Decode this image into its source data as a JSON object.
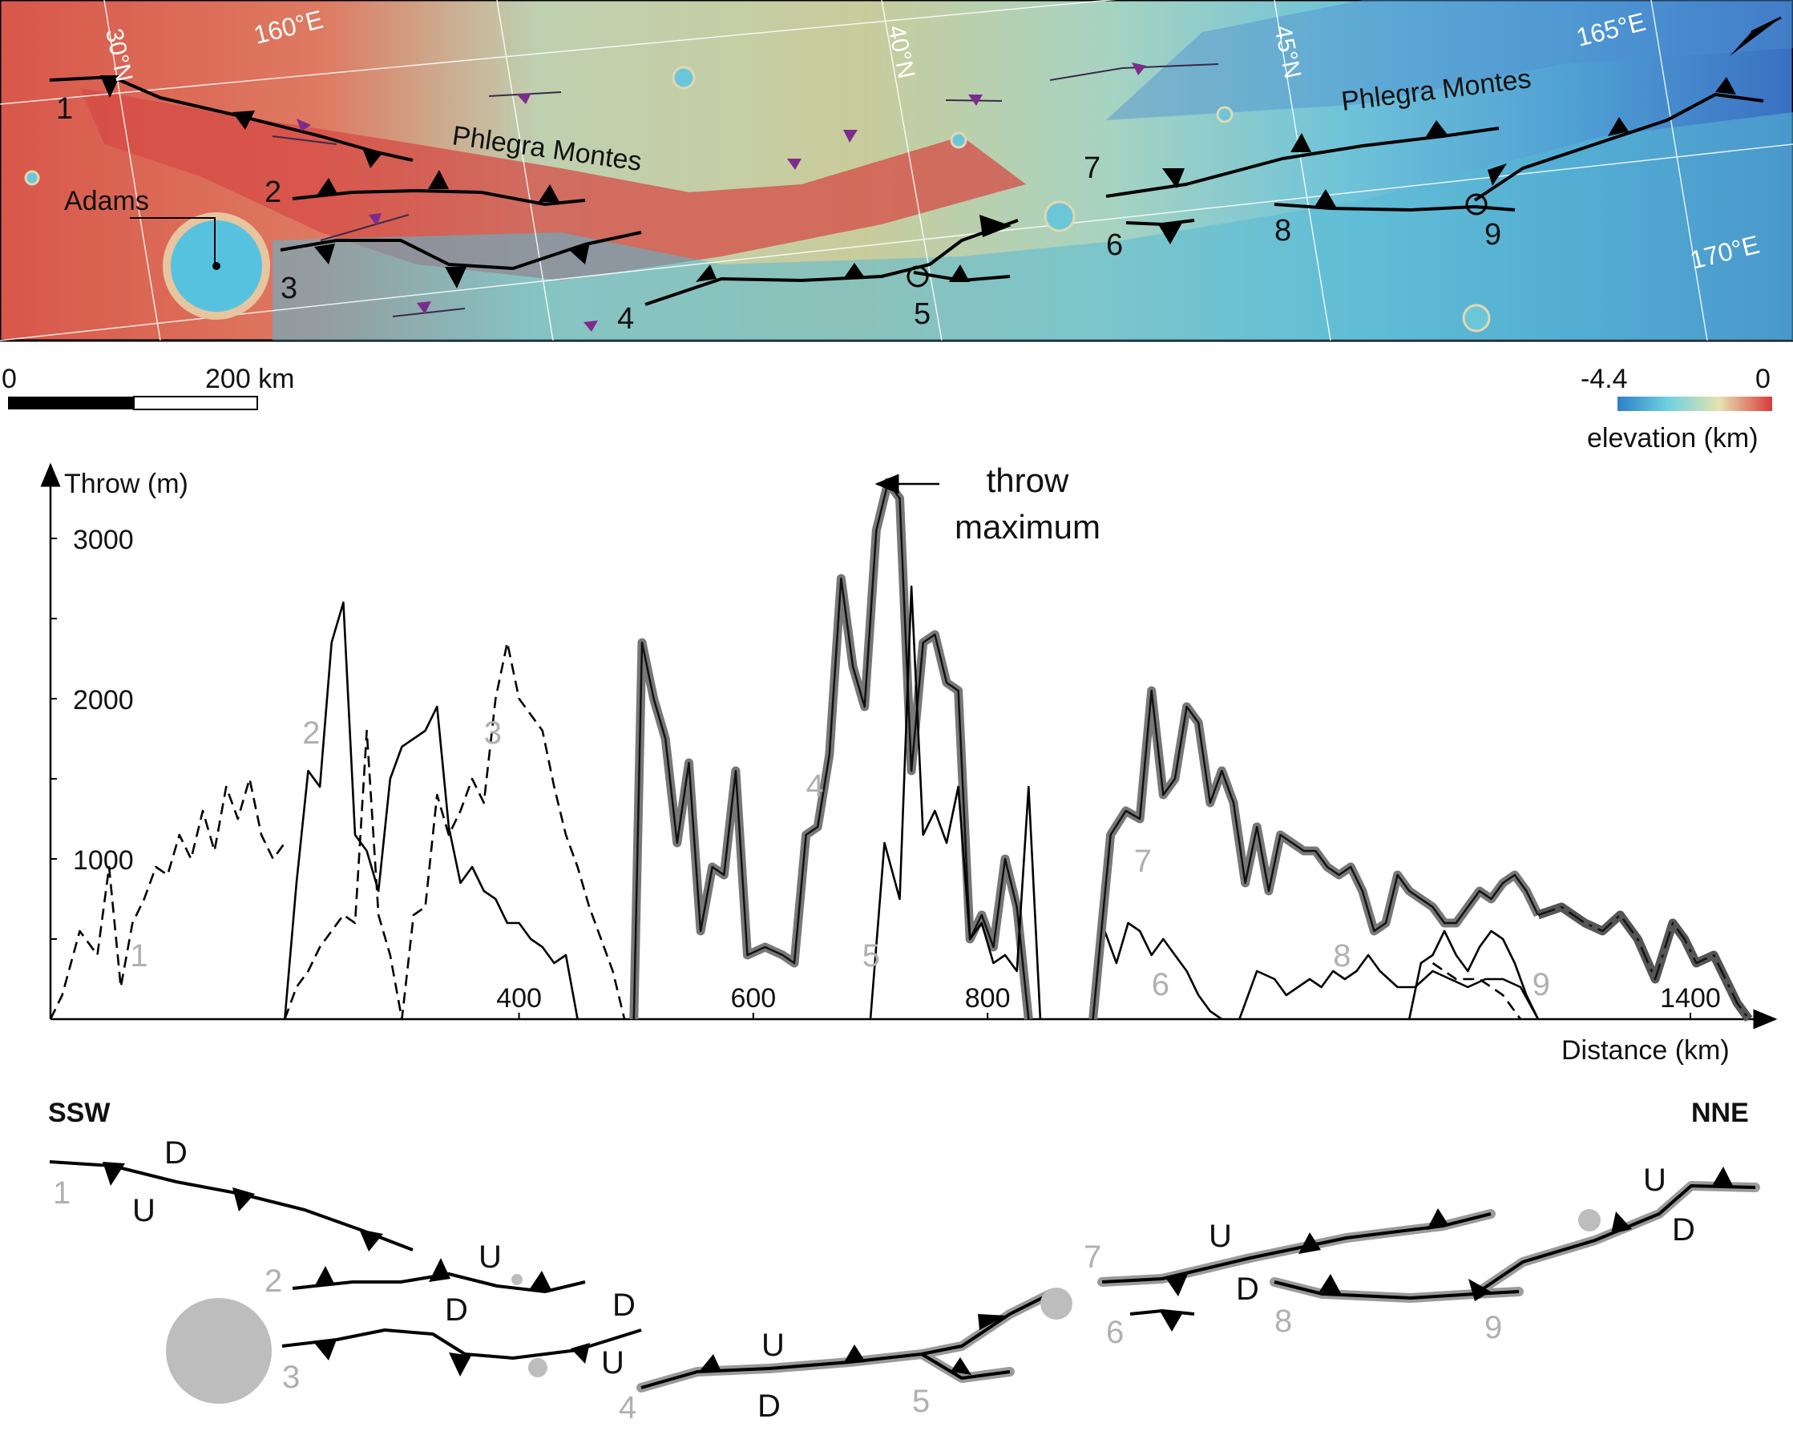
{
  "map": {
    "lat_labels": [
      "30°N",
      "40°N",
      "45°N"
    ],
    "lon_labels": [
      "160°E",
      "165°E",
      "170°E"
    ],
    "region_labels": [
      "Phlegra Montes",
      "Phlegra Montes"
    ],
    "crater_label": "Adams",
    "fault_numbers": [
      "1",
      "2",
      "3",
      "4",
      "5",
      "6",
      "7",
      "8",
      "9"
    ],
    "scale_bar": {
      "start": "0",
      "end": "200 km"
    },
    "color_scale": {
      "min": "-4.4",
      "max": "0",
      "label": "elevation (km)",
      "colors": [
        "#2f7fc8",
        "#6fd2e0",
        "#e6e2b0",
        "#d83a3a"
      ]
    }
  },
  "chart_data": {
    "type": "line",
    "title": "",
    "xlabel": "Distance (km)",
    "ylabel": "Throw (m)",
    "xlim": [
      0,
      1450
    ],
    "ylim": [
      0,
      3400
    ],
    "x_ticks": [
      "400",
      "600",
      "800",
      "1400"
    ],
    "y_ticks": [
      "1000",
      "2000",
      "3000"
    ],
    "annotation": {
      "line1": "throw",
      "line2": "maximum",
      "x": 700,
      "y": 3350
    },
    "series_labels": [
      {
        "text": "1",
        "x": 68,
        "y": 330
      },
      {
        "text": "2",
        "x": 215,
        "y": 1720
      },
      {
        "text": "3",
        "x": 370,
        "y": 1720
      },
      {
        "text": "4",
        "x": 645,
        "y": 1390
      },
      {
        "text": "5",
        "x": 693,
        "y": 330
      },
      {
        "text": "6",
        "x": 940,
        "y": 150
      },
      {
        "text": "7",
        "x": 925,
        "y": 920
      },
      {
        "text": "8",
        "x": 1095,
        "y": 330
      },
      {
        "text": "9",
        "x": 1265,
        "y": 150
      }
    ],
    "series": [
      {
        "id": "1",
        "style": "dashed",
        "color": "#000000",
        "x": [
          0,
          10,
          25,
          40,
          50,
          60,
          70,
          80,
          90,
          100,
          110,
          120,
          130,
          140,
          150,
          160,
          170,
          180,
          190,
          200
        ],
        "y": [
          0,
          150,
          550,
          400,
          950,
          200,
          600,
          750,
          950,
          900,
          1150,
          1000,
          1300,
          1050,
          1450,
          1250,
          1500,
          1150,
          1000,
          1100
        ]
      },
      {
        "id": "2",
        "style": "solid",
        "color": "#000000",
        "x": [
          200,
          210,
          220,
          230,
          240,
          250,
          260,
          270,
          280,
          290,
          300,
          310,
          320,
          330,
          340,
          350,
          360,
          370,
          380,
          390,
          400,
          410,
          420,
          430,
          440,
          450
        ],
        "y": [
          0,
          850,
          1550,
          1450,
          2350,
          2600,
          1150,
          1050,
          800,
          1500,
          1700,
          1750,
          1800,
          1950,
          1200,
          850,
          950,
          800,
          750,
          600,
          600,
          500,
          450,
          350,
          400,
          0
        ]
      },
      {
        "id": "3",
        "style": "dashed",
        "color": "#000000",
        "x": [
          200,
          210,
          220,
          230,
          240,
          250,
          260,
          270,
          280,
          290,
          300,
          310,
          320,
          330,
          340,
          350,
          360,
          370,
          380,
          390,
          400,
          410,
          420,
          430,
          440,
          450,
          460,
          470,
          480,
          490
        ],
        "y": [
          0,
          200,
          300,
          450,
          550,
          650,
          600,
          1800,
          650,
          400,
          0,
          650,
          700,
          1400,
          1150,
          1300,
          1500,
          1350,
          2000,
          2350,
          2000,
          1900,
          1800,
          1450,
          1150,
          950,
          700,
          500,
          300,
          0
        ]
      },
      {
        "id": "4",
        "style": "solid",
        "color": "#777777",
        "halo": true,
        "x": [
          498,
          505,
          515,
          525,
          535,
          545,
          555,
          565,
          575,
          585,
          595,
          610,
          625,
          635,
          645,
          655,
          665,
          675,
          685,
          695,
          705,
          715,
          725,
          735,
          745,
          755,
          765,
          775,
          785,
          795,
          805,
          815,
          825,
          835
        ],
        "y": [
          0,
          2350,
          2000,
          1750,
          1100,
          1600,
          550,
          950,
          900,
          1550,
          400,
          450,
          400,
          350,
          1150,
          1200,
          1650,
          2750,
          2200,
          1950,
          3050,
          3350,
          3250,
          1550,
          2350,
          2400,
          2100,
          2050,
          500,
          650,
          450,
          1000,
          700,
          0
        ]
      },
      {
        "id": "5",
        "style": "solid",
        "color": "#000000",
        "x": [
          700,
          712,
          725,
          735,
          745,
          755,
          765,
          775,
          785,
          795,
          805,
          815,
          825,
          835,
          845
        ],
        "y": [
          0,
          1100,
          750,
          2700,
          1150,
          1300,
          1100,
          1450,
          500,
          600,
          350,
          400,
          300,
          1450,
          0
        ]
      },
      {
        "id": "6",
        "style": "solid",
        "color": "#000000",
        "x": [
          890,
          900,
          910,
          920,
          930,
          940,
          950,
          960,
          970,
          980,
          990,
          1000
        ],
        "y": [
          0,
          550,
          350,
          600,
          550,
          400,
          500,
          400,
          300,
          150,
          50,
          0
        ]
      },
      {
        "id": "7",
        "style": "solid",
        "color": "#777777",
        "halo": true,
        "x": [
          890,
          905,
          918,
          930,
          940,
          950,
          960,
          970,
          980,
          990,
          1000,
          1010,
          1020,
          1030,
          1040,
          1050,
          1060,
          1070,
          1080,
          1090,
          1100,
          1110,
          1120,
          1130,
          1140,
          1150,
          1160,
          1170,
          1180,
          1190,
          1200,
          1210,
          1220,
          1230,
          1240,
          1250,
          1260,
          1270
        ],
        "y": [
          0,
          1150,
          1300,
          1250,
          2050,
          1400,
          1500,
          1950,
          1850,
          1350,
          1550,
          1350,
          850,
          1200,
          800,
          1150,
          1100,
          1050,
          1050,
          950,
          900,
          950,
          800,
          550,
          600,
          900,
          800,
          750,
          700,
          600,
          600,
          700,
          800,
          750,
          850,
          900,
          800,
          650
        ]
      },
      {
        "id": "8",
        "style": "solid",
        "color": "#000000",
        "x": [
          1015,
          1030,
          1045,
          1055,
          1065,
          1075,
          1085,
          1095,
          1105,
          1115,
          1125,
          1135,
          1150,
          1165,
          1180,
          1195,
          1210,
          1225,
          1240,
          1255,
          1270
        ],
        "y": [
          0,
          300,
          250,
          150,
          200,
          250,
          200,
          300,
          250,
          300,
          400,
          300,
          200,
          200,
          300,
          250,
          200,
          250,
          250,
          200,
          0
        ]
      },
      {
        "id": "9",
        "style": "solid",
        "color": "#000000",
        "x": [
          1160,
          1170,
          1180,
          1190,
          1200,
          1210,
          1220,
          1230,
          1240,
          1250,
          1260,
          1270
        ],
        "y": [
          0,
          350,
          400,
          550,
          400,
          300,
          450,
          550,
          500,
          350,
          150,
          0
        ]
      },
      {
        "id": "9-tail",
        "style": "dashed",
        "color": "#000000",
        "x": [
          1180,
          1200,
          1220,
          1240,
          1255
        ],
        "y": [
          350,
          250,
          250,
          150,
          0
        ]
      },
      {
        "id": "7-extension",
        "style": "dash-dot",
        "color": "#555555",
        "halo": true,
        "x": [
          1270,
          1290,
          1310,
          1325,
          1340,
          1355,
          1370,
          1385,
          1395,
          1405,
          1420,
          1430,
          1440,
          1450
        ],
        "y": [
          650,
          700,
          600,
          550,
          650,
          500,
          250,
          600,
          500,
          350,
          400,
          250,
          100,
          0
        ]
      }
    ]
  },
  "orientation": {
    "left": "SSW",
    "right": "NNE"
  },
  "diagram_labels": {
    "fault_numbers": [
      "1",
      "2",
      "3",
      "4",
      "5",
      "6",
      "7",
      "8",
      "9"
    ],
    "up_side": "U",
    "down_side": "D"
  }
}
